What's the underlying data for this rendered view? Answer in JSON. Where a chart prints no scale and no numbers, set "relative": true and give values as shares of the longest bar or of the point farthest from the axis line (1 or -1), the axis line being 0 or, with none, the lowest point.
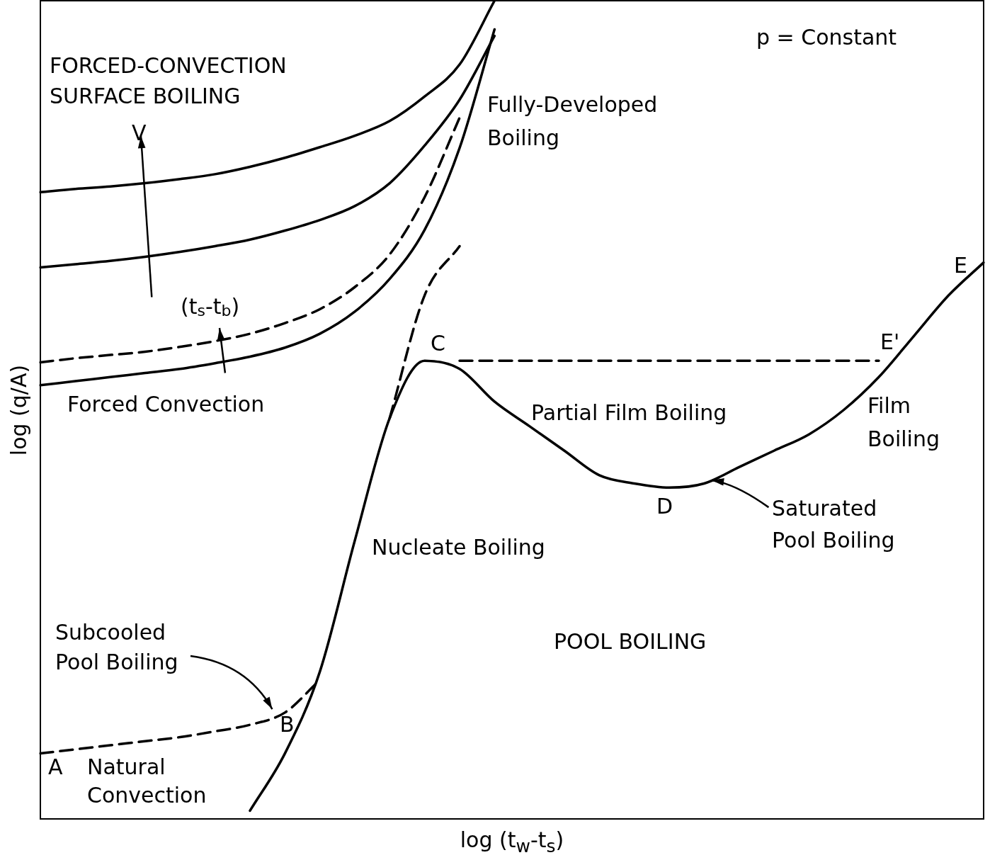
{
  "chart_data": {
    "type": "line",
    "relative": true,
    "xlabel": "log (t$_{w}$-t$_{s}$)",
    "ylabel": "log (q/A)",
    "categories": [
      null,
      null,
      null,
      null,
      null,
      null,
      null,
      null,
      null,
      null,
      null,
      null,
      null,
      null,
      null,
      null,
      null,
      null,
      null,
      null,
      null,
      null,
      null,
      null,
      null,
      null,
      null,
      null
    ],
    "series": [
      {
        "color": "#000000",
        "line_style": "solid",
        "values": [
          null,
          null,
          null,
          null,
          null,
          null,
          0.01,
          0.08,
          0.18,
          0.34,
          0.49,
          0.56,
          0.55,
          0.51,
          0.48,
          0.45,
          0.42,
          0.41,
          0.405,
          0.41,
          0.43,
          0.45,
          0.47,
          0.5,
          0.54,
          0.59,
          0.64,
          0.68
        ]
      },
      {
        "color": "#000000",
        "line_style": "dashed",
        "values": [
          0.08,
          0.085,
          0.09,
          0.095,
          0.1,
          0.107,
          0.115,
          0.13,
          0.17,
          null,
          null,
          null,
          null,
          null,
          null,
          null,
          null,
          null,
          null,
          null,
          null,
          null,
          null,
          null,
          null,
          null,
          null,
          null
        ]
      },
      {
        "color": "#000000",
        "line_style": "dashed",
        "values": [
          null,
          null,
          null,
          null,
          null,
          null,
          null,
          null,
          null,
          null,
          0.49,
          0.64,
          0.7,
          null,
          null,
          null,
          null,
          null,
          null,
          null,
          null,
          null,
          null,
          null,
          null,
          null,
          null,
          null
        ]
      },
      {
        "color": "#000000",
        "line_style": "solid",
        "values": [
          0.53,
          0.535,
          0.54,
          0.545,
          0.55,
          0.557,
          0.565,
          0.576,
          0.593,
          0.62,
          0.66,
          0.72,
          0.82,
          0.965,
          null,
          null,
          null,
          null,
          null,
          null,
          null,
          null,
          null,
          null,
          null,
          null,
          null,
          null
        ]
      },
      {
        "color": "#000000",
        "line_style": "dashed",
        "values": [
          0.558,
          0.563,
          0.567,
          0.571,
          0.577,
          0.584,
          0.593,
          0.606,
          0.623,
          0.65,
          0.69,
          0.76,
          0.857,
          null,
          null,
          null,
          null,
          null,
          null,
          null,
          null,
          null,
          null,
          null,
          null,
          null,
          null,
          null
        ]
      },
      {
        "color": "#000000",
        "line_style": "solid",
        "values": [
          0.674,
          0.678,
          0.682,
          0.687,
          0.693,
          0.7,
          0.708,
          0.719,
          0.732,
          0.749,
          0.777,
          0.823,
          0.879,
          0.957,
          null,
          null,
          null,
          null,
          null,
          null,
          null,
          null,
          null,
          null,
          null,
          null,
          null,
          null
        ]
      },
      {
        "color": "#000000",
        "line_style": "solid",
        "values": [
          0.766,
          0.77,
          0.773,
          0.777,
          0.782,
          0.788,
          0.797,
          0.808,
          0.821,
          0.835,
          0.853,
          0.883,
          0.922,
          1,
          null,
          null,
          null,
          null,
          null,
          null,
          null,
          null,
          null,
          null,
          null,
          null,
          null,
          null
        ]
      },
      {
        "color": "#000000",
        "line_style": "dashed",
        "values": [
          null,
          null,
          null,
          null,
          null,
          null,
          null,
          null,
          null,
          null,
          null,
          null,
          0.56,
          0.56,
          0.56,
          0.56,
          0.56,
          0.56,
          0.56,
          0.56,
          0.56,
          0.56,
          0.56,
          0.56,
          0.56,
          null,
          null,
          null
        ]
      }
    ],
    "annotations": [
      "p = Constant",
      "FORCED-CONVECTION\nSURFACE BOILING",
      "Fully-Developed\nBoiling",
      "V",
      "(t$_{s}$-t$_{b}$)",
      "Forced Convection",
      "C",
      "E'",
      "E",
      "Partial Film Boiling",
      "Film\nBoiling",
      "D",
      "Saturated\nPool Boiling",
      "Nucleate Boiling",
      "POOL BOILING",
      "Subcooled\nPool Boiling",
      "B",
      "A",
      "Natural\nConvection"
    ],
    "legend": false,
    "grid": false,
    "marker": "none"
  }
}
